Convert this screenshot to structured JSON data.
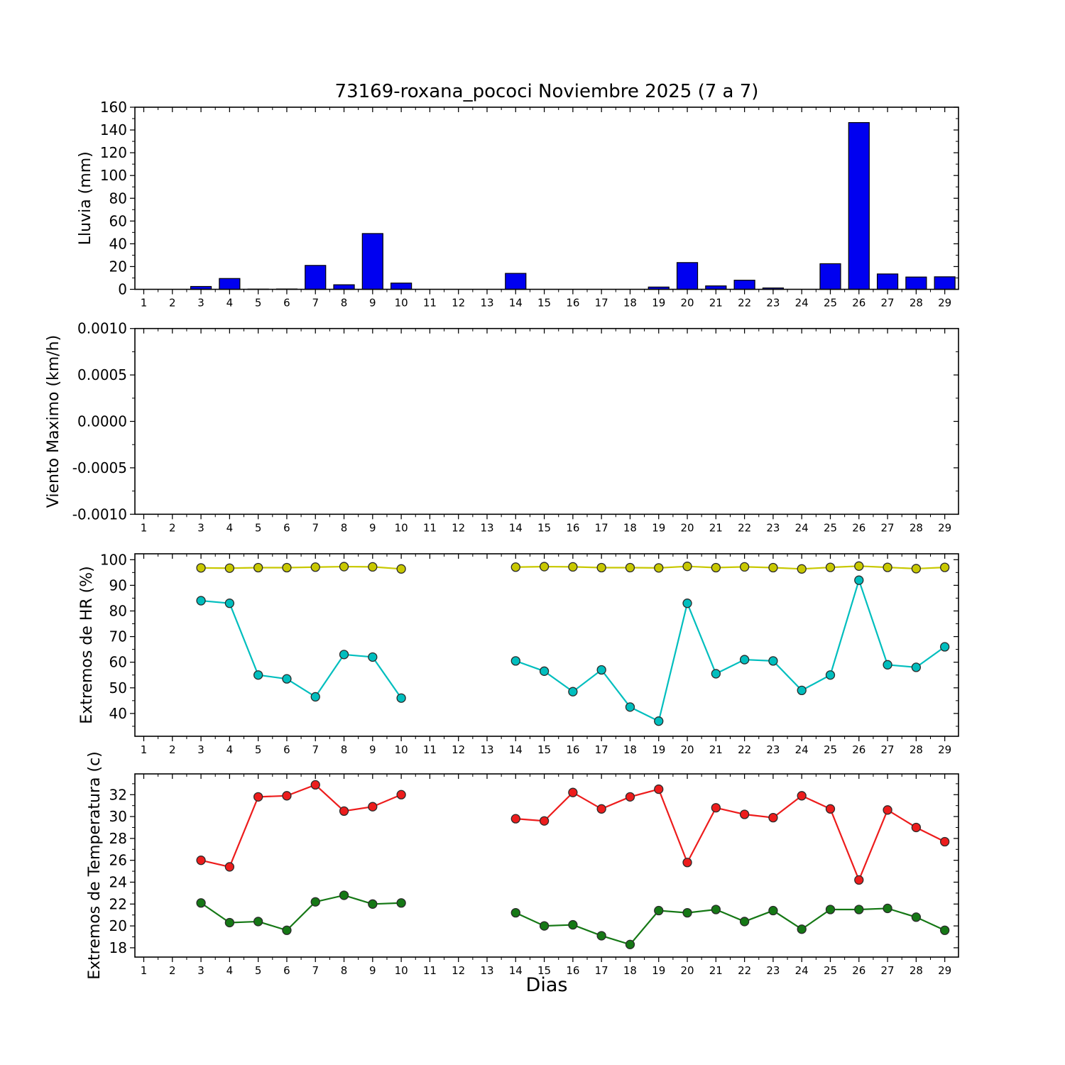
{
  "figure": {
    "title": "73169-roxana_pococi Noviembre 2025  (7 a 7)",
    "xlabel": "Dias"
  },
  "days": [
    1,
    2,
    3,
    4,
    5,
    6,
    7,
    8,
    9,
    10,
    11,
    12,
    13,
    14,
    15,
    16,
    17,
    18,
    19,
    20,
    21,
    22,
    23,
    24,
    25,
    26,
    27,
    28,
    29
  ],
  "colors": {
    "bar_blue": "#0000f0",
    "hr_max_yellow": "#c8c800",
    "hr_min_cyan": "#00bebe",
    "temp_max_red": "#ed1c1c",
    "temp_min_green": "#157815",
    "marker_edge": "#2a2a2a",
    "axis_black": "#000000"
  },
  "chart_data": [
    {
      "type": "bar",
      "name": "lluvia",
      "ylabel": "Lluvia (mm)",
      "ylim": [
        0,
        160
      ],
      "yticks": [
        0,
        20,
        40,
        60,
        80,
        100,
        120,
        140,
        160
      ],
      "ytick_labels": [
        "0",
        "20",
        "40",
        "60",
        "80",
        "100",
        "120",
        "140",
        "160"
      ],
      "yminor_step": 10,
      "categories": [
        1,
        2,
        3,
        4,
        5,
        6,
        7,
        8,
        9,
        10,
        11,
        12,
        13,
        14,
        15,
        16,
        17,
        18,
        19,
        20,
        21,
        22,
        23,
        24,
        25,
        26,
        27,
        28,
        29
      ],
      "values": [
        0,
        0,
        2.5,
        9.5,
        0.2,
        0.3,
        21,
        4,
        49,
        5.5,
        0,
        0,
        0,
        14,
        0,
        0,
        0,
        0,
        2,
        23.5,
        3,
        8,
        1.2,
        0,
        22.5,
        146.5,
        13.5,
        10.8,
        11
      ],
      "grid": false
    },
    {
      "type": "line",
      "name": "viento",
      "ylabel": "Viento Maximo (km/h)",
      "ylim": [
        -0.001,
        0.001
      ],
      "yticks": [
        -0.001,
        -0.0005,
        0,
        0.0005,
        0.001
      ],
      "ytick_labels": [
        "-0.0010",
        "-0.0005",
        "0.0000",
        "0.0005",
        "0.0010"
      ],
      "yminor_step": 0.00025,
      "series": [],
      "grid": false,
      "note_no_data": true
    },
    {
      "type": "line",
      "name": "hr",
      "ylabel": "Extremos de HR (%)",
      "ylim": [
        31.1,
        102.3
      ],
      "yticks": [
        40,
        50,
        60,
        70,
        80,
        90,
        100
      ],
      "ytick_labels": [
        "40",
        "50",
        "60",
        "70",
        "80",
        "90",
        "100"
      ],
      "yminor_step": 5,
      "x": [
        3,
        4,
        5,
        6,
        7,
        8,
        9,
        10,
        14,
        15,
        16,
        17,
        18,
        19,
        20,
        21,
        22,
        23,
        24,
        25,
        26,
        27,
        28,
        29
      ],
      "series": [
        {
          "id": "hr-max",
          "color_key": "hr_max_yellow",
          "values": [
            96.8,
            96.7,
            96.9,
            96.9,
            97.1,
            97.3,
            97.2,
            96.4,
            97.1,
            97.3,
            97.2,
            96.9,
            96.9,
            96.8,
            97.4,
            96.9,
            97.2,
            96.9,
            96.4,
            97.0,
            97.5,
            97.0,
            96.5,
            97.0
          ]
        },
        {
          "id": "hr-min",
          "color_key": "hr_min_cyan",
          "values": [
            84,
            83,
            55,
            53.5,
            46.5,
            63,
            62,
            46,
            60.5,
            56.5,
            48.5,
            57,
            42.5,
            37,
            83,
            55.5,
            61,
            60.5,
            49,
            55,
            92,
            59,
            58,
            66
          ]
        }
      ],
      "grid": false
    },
    {
      "type": "line",
      "name": "temperatura",
      "ylabel": "Extremos de Temperatura (c)",
      "ylim": [
        17.15,
        33.9
      ],
      "yticks": [
        18,
        20,
        22,
        24,
        26,
        28,
        30,
        32
      ],
      "ytick_labels": [
        "18",
        "20",
        "22",
        "24",
        "26",
        "28",
        "30",
        "32"
      ],
      "yminor_step": 1,
      "x": [
        3,
        4,
        5,
        6,
        7,
        8,
        9,
        10,
        14,
        15,
        16,
        17,
        18,
        19,
        20,
        21,
        22,
        23,
        24,
        25,
        26,
        27,
        28,
        29
      ],
      "series": [
        {
          "id": "temp-max",
          "color_key": "temp_max_red",
          "values": [
            26.0,
            25.4,
            31.8,
            31.9,
            32.9,
            30.5,
            30.9,
            32.0,
            29.8,
            29.6,
            32.2,
            30.7,
            31.8,
            32.5,
            25.8,
            30.8,
            30.2,
            29.9,
            31.9,
            30.7,
            24.2,
            30.6,
            29.0,
            27.7
          ]
        },
        {
          "id": "temp-min",
          "color_key": "temp_min_green",
          "values": [
            22.1,
            20.3,
            20.4,
            19.6,
            22.2,
            22.8,
            22.0,
            22.1,
            21.2,
            20.0,
            20.1,
            19.1,
            18.3,
            21.4,
            21.2,
            21.5,
            20.4,
            21.4,
            19.7,
            21.5,
            21.5,
            21.6,
            20.8,
            19.6
          ]
        }
      ],
      "grid": false
    }
  ],
  "x_axis": {
    "xlim": [
      0.69,
      29.48
    ],
    "xminor_step": 0.5
  }
}
